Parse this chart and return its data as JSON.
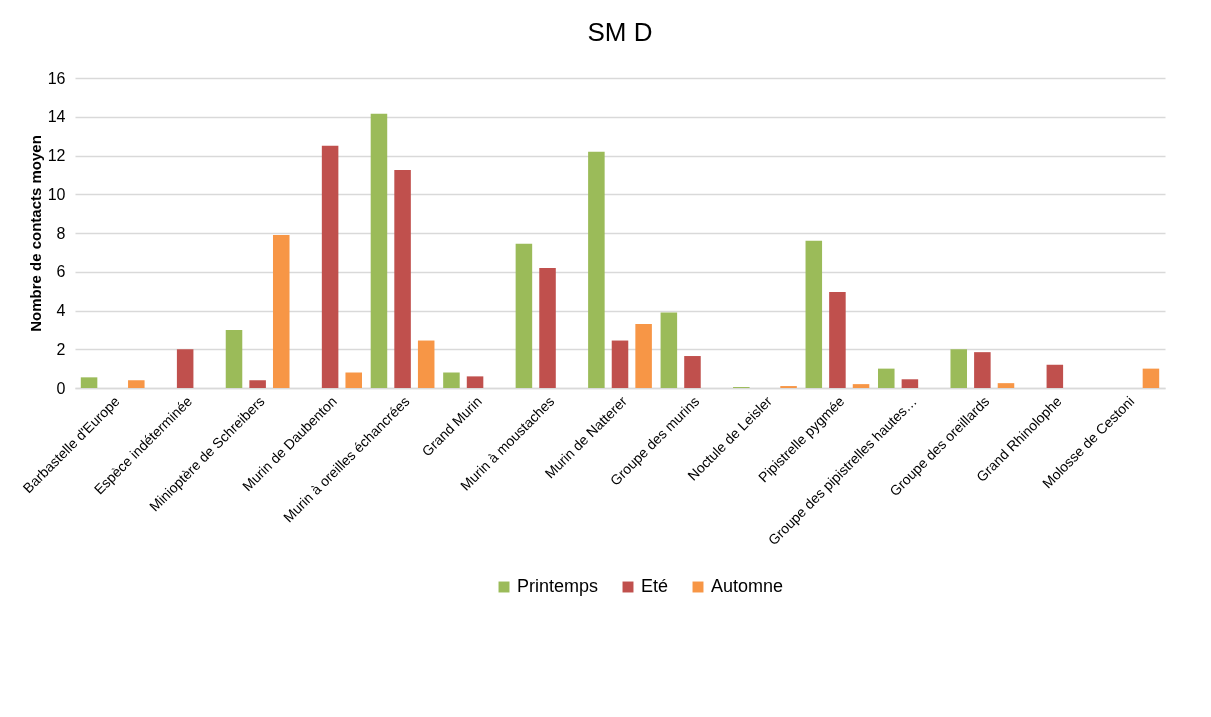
{
  "chart_data": {
    "type": "bar",
    "title": "SM D",
    "ylabel": "Nombre de contacts moyen",
    "categories": [
      "Barbastelle d'Europe",
      "Espèce indéterminée",
      "Minioptère de Schreibers",
      "Murin de Daubenton",
      "Murin à oreilles échancrées",
      "Grand Murin",
      "Murin à moustaches",
      "Murin de Natterer",
      "Groupe des murins",
      "Noctule de Leisler",
      "Pipistrelle pygmée",
      "Groupe des pipistrelles hautes…",
      "Groupe des oreillards",
      "Grand Rhinolophe",
      "Molosse de Cestoni"
    ],
    "series": [
      {
        "name": "Printemps",
        "color": "#9bbb59",
        "values": [
          0.55,
          null,
          3.0,
          null,
          14.15,
          0.8,
          7.45,
          12.2,
          3.9,
          0.05,
          7.6,
          1.0,
          2.0,
          null,
          null
        ]
      },
      {
        "name": "Eté",
        "color": "#c0504d",
        "values": [
          null,
          2.0,
          0.4,
          12.5,
          11.25,
          0.6,
          6.2,
          2.45,
          1.65,
          null,
          4.95,
          0.45,
          1.85,
          1.2,
          null
        ]
      },
      {
        "name": "Automne",
        "color": "#f79646",
        "values": [
          0.4,
          null,
          7.9,
          0.8,
          2.45,
          null,
          null,
          3.3,
          null,
          0.1,
          0.2,
          null,
          0.25,
          null,
          1.0
        ]
      }
    ],
    "ylim": [
      0,
      16
    ],
    "yticks": [
      0,
      2,
      4,
      6,
      8,
      10,
      12,
      14,
      16
    ],
    "grid": "y",
    "legend": "bottom"
  }
}
